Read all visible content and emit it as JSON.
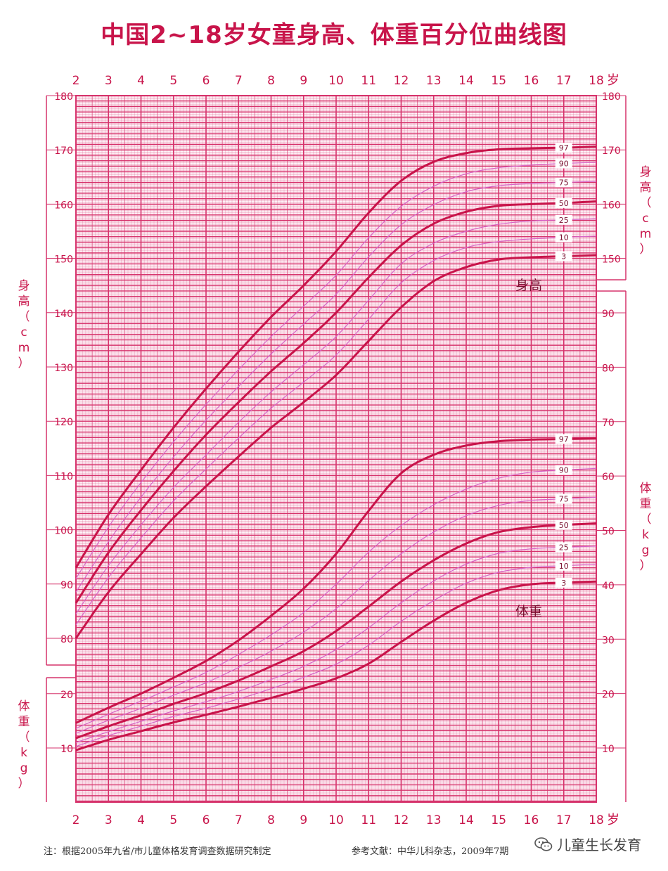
{
  "title": "中国2~18岁女童身高、体重百分位曲线图",
  "footer": {
    "note": "注：根据2005年九省/市儿童体格发育调查数据研究制定",
    "reference": "参考文献：中华儿科杂志，2009年7期",
    "watermark": "儿童生长发育",
    "watermark_icon": "wechat-icon"
  },
  "colors": {
    "title": "#c8144a",
    "grid": "#d6336c",
    "curve_major": "#c8144a",
    "curve_minor": "#d764c8"
  },
  "chart_data": {
    "type": "line",
    "x_label": "岁",
    "x_ticks": [
      2,
      3,
      4,
      5,
      6,
      7,
      8,
      9,
      10,
      11,
      12,
      13,
      14,
      15,
      16,
      17,
      18
    ],
    "height": {
      "label": "身高（cm）",
      "curve_label": "身高",
      "ylim": [
        75,
        180
      ],
      "y_ticks": [
        80,
        90,
        100,
        110,
        120,
        130,
        140,
        150,
        160,
        170,
        180
      ],
      "x": [
        2,
        3,
        4,
        5,
        6,
        7,
        8,
        9,
        10,
        11,
        12,
        13,
        14,
        15,
        16,
        17,
        18
      ],
      "series": [
        {
          "name": "3",
          "major": true,
          "values": [
            80.0,
            88.5,
            95.5,
            102.2,
            108.0,
            113.5,
            118.8,
            123.5,
            128.5,
            134.8,
            141.0,
            145.8,
            148.4,
            149.8,
            150.2,
            150.4,
            150.6
          ]
        },
        {
          "name": "10",
          "major": false,
          "values": [
            82.5,
            91.2,
            98.5,
            105.3,
            111.2,
            116.9,
            122.4,
            127.2,
            132.2,
            138.8,
            145.5,
            149.6,
            152.0,
            153.1,
            153.6,
            153.9,
            154.1
          ]
        },
        {
          "name": "25",
          "major": false,
          "values": [
            84.5,
            93.4,
            100.9,
            107.8,
            113.8,
            119.8,
            125.4,
            130.4,
            135.6,
            142.3,
            149.0,
            152.8,
            155.0,
            156.3,
            156.9,
            157.1,
            157.3
          ]
        },
        {
          "name": "50",
          "major": true,
          "values": [
            86.5,
            95.8,
            103.6,
            110.8,
            117.5,
            123.5,
            129.2,
            134.4,
            140.0,
            146.5,
            152.4,
            156.4,
            158.6,
            159.7,
            160.0,
            160.2,
            160.5
          ]
        },
        {
          "name": "75",
          "major": false,
          "values": [
            88.5,
            97.8,
            106.0,
            113.4,
            120.2,
            126.4,
            132.4,
            137.9,
            143.4,
            150.3,
            156.2,
            159.9,
            162.3,
            163.4,
            163.8,
            164.0,
            164.2
          ]
        },
        {
          "name": "90",
          "major": false,
          "values": [
            91.0,
            100.5,
            108.7,
            116.2,
            123.1,
            129.5,
            135.6,
            141.2,
            146.9,
            153.8,
            159.6,
            163.3,
            165.6,
            166.7,
            167.2,
            167.5,
            167.7
          ]
        },
        {
          "name": "97",
          "major": true,
          "values": [
            93.0,
            102.8,
            111.0,
            118.8,
            126.0,
            132.8,
            139.2,
            145.0,
            151.3,
            158.4,
            164.3,
            167.8,
            169.4,
            170.1,
            170.3,
            170.4,
            170.6
          ]
        }
      ]
    },
    "weight": {
      "label": "体重（kg）",
      "curve_label": "体重",
      "ylim_left": [
        3,
        26
      ],
      "ylim_right": [
        3,
        95
      ],
      "y_ticks_left": [
        10,
        20
      ],
      "y_ticks_right": [
        10,
        20,
        30,
        40,
        50,
        60,
        70,
        80,
        90
      ],
      "x": [
        2,
        3,
        4,
        5,
        6,
        7,
        8,
        9,
        10,
        11,
        12,
        13,
        14,
        15,
        16,
        17,
        18
      ],
      "series": [
        {
          "name": "3",
          "major": true,
          "values": [
            9.6,
            11.5,
            13.1,
            14.7,
            16.1,
            17.6,
            19.2,
            20.9,
            22.8,
            25.5,
            29.5,
            33.4,
            36.7,
            39.0,
            40.1,
            40.4,
            40.6
          ]
        },
        {
          "name": "10",
          "major": false,
          "values": [
            10.3,
            12.3,
            14.0,
            15.8,
            17.3,
            19.0,
            20.9,
            23.0,
            25.4,
            28.9,
            33.3,
            37.1,
            40.3,
            42.3,
            43.2,
            43.5,
            43.8
          ]
        },
        {
          "name": "25",
          "major": false,
          "values": [
            11.0,
            13.0,
            14.9,
            16.8,
            18.5,
            20.4,
            22.6,
            25.0,
            28.1,
            32.1,
            36.7,
            40.7,
            43.8,
            45.8,
            46.6,
            46.9,
            47.1
          ]
        },
        {
          "name": "50",
          "major": true,
          "values": [
            11.8,
            14.0,
            16.0,
            18.1,
            20.1,
            22.4,
            25.0,
            27.8,
            31.5,
            36.0,
            40.6,
            44.5,
            47.6,
            49.7,
            50.6,
            51.0,
            51.3
          ]
        },
        {
          "name": "75",
          "major": false,
          "values": [
            12.7,
            15.1,
            17.3,
            19.7,
            22.0,
            24.8,
            27.8,
            31.3,
            35.6,
            40.8,
            45.7,
            49.7,
            52.7,
            54.6,
            55.5,
            55.8,
            56.1
          ]
        },
        {
          "name": "90",
          "major": false,
          "values": [
            13.6,
            16.2,
            18.6,
            21.2,
            23.9,
            27.2,
            30.8,
            34.9,
            40.1,
            46.0,
            50.9,
            54.7,
            57.6,
            59.6,
            60.7,
            61.1,
            61.4
          ]
        },
        {
          "name": "97",
          "major": true,
          "values": [
            14.6,
            17.4,
            20.0,
            22.9,
            26.0,
            29.8,
            34.3,
            39.3,
            45.7,
            53.6,
            60.5,
            63.9,
            65.6,
            66.4,
            66.7,
            66.8,
            66.9
          ]
        }
      ]
    }
  }
}
